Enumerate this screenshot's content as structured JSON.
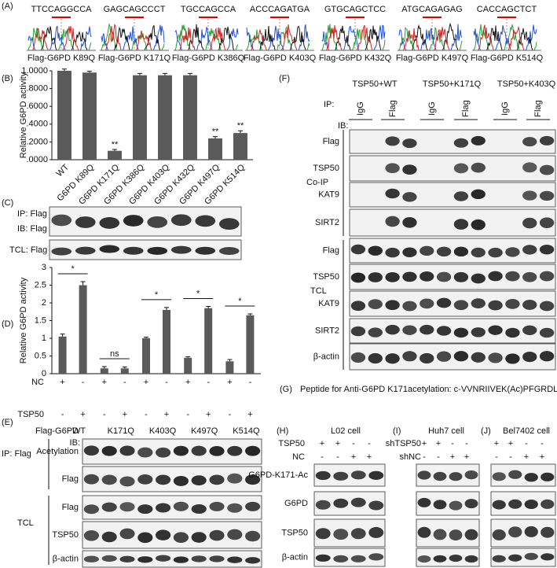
{
  "panels": {
    "A": {
      "label": "(A)",
      "sequences": [
        "TTCCAGGCCA",
        "GAGCAGCCCT",
        "TGCCAGCCA",
        "ACCCAGATGA",
        "GTGCAGCTCC",
        "ATGCAGAGAG",
        "CACCAGCTCT"
      ],
      "constructs": [
        "Flag-G6PD K89Q",
        "Flag-G6PD K171Q",
        "Flag-G6PD K386Q",
        "Flag-G6PD K403Q",
        "Flag-G6PD K432Q",
        "Flag-G6PD K497Q",
        "Flag-G6PD K514Q"
      ]
    },
    "B": {
      "label": "(B)"
    },
    "C": {
      "label": "(C)",
      "rows": [
        "IP: Flag",
        "IB: Flag",
        "TCL: Flag"
      ]
    },
    "D": {
      "label": "(D)"
    },
    "E": {
      "label": "(E)",
      "construct_label": "Flag-G6PD",
      "ib": "IB:",
      "ip": "IP: Flag",
      "ip_rows": [
        "Acetylation",
        "Flag"
      ],
      "tcl": "TCL",
      "tcl_rows": [
        "Flag",
        "TSP50",
        "β-actin"
      ]
    },
    "F": {
      "label": "(F)",
      "groups": [
        "TSP50+WT",
        "TSP50+K171Q",
        "TSP50+K403Q"
      ],
      "ip": "IP:",
      "lanes": [
        "IgG",
        "Flag",
        "IgG",
        "Flag",
        "IgG",
        "Flag"
      ],
      "ib": "IB:",
      "coip": "Co-IP",
      "coip_rows": [
        "Flag",
        "TSP50",
        "KAT9",
        "SIRT2"
      ],
      "tcl": "TCL",
      "tcl_rows": [
        "Flag",
        "TSP50",
        "KAT9",
        "SIRT2",
        "β-actin"
      ]
    },
    "G": {
      "label": "(G)",
      "text": "Peptide for Anti-G6PD K171acetylation: c-VVNRIIVEK(Ac)PFGRDLQ"
    },
    "H": {
      "label": "(H)",
      "title": "L02 cell",
      "conditions": [
        {
          "name": "TSP50",
          "marks": [
            "+",
            "+",
            "-",
            "-"
          ]
        },
        {
          "name": "NC",
          "marks": [
            "-",
            "-",
            "+",
            "+"
          ]
        }
      ],
      "rows": [
        "G6PD-K171-Ac",
        "G6PD",
        "TSP50",
        "β-actin"
      ]
    },
    "I": {
      "label": "(I)",
      "title": "Huh7 cell",
      "conditions": [
        {
          "name": "shTSP50",
          "marks": [
            "+",
            "+",
            "-",
            "-"
          ]
        },
        {
          "name": "shNC",
          "marks": [
            "-",
            "-",
            "+",
            "+"
          ]
        }
      ]
    },
    "J": {
      "label": "(J)",
      "title": "Bel7402 cell",
      "conditions": [
        {
          "marks": [
            "+",
            "+",
            "-",
            "-"
          ]
        },
        {
          "marks": [
            "-",
            "-",
            "+",
            "+"
          ]
        }
      ]
    }
  },
  "chart_data": [
    {
      "type": "bar",
      "ylabel": "Relative G6PD activity",
      "categories": [
        "WT",
        "G6PD K89Q",
        "G6PD K171Q",
        "G6PD K386Q",
        "G6PD K403Q",
        "G6PD K432Q",
        "G6PD K497Q",
        "G6PD K514Q"
      ],
      "values": [
        1.0,
        0.98,
        0.1,
        0.95,
        0.95,
        0.95,
        0.24,
        0.3
      ],
      "errors": [
        0.02,
        0.015,
        0.015,
        0.02,
        0.02,
        0.02,
        0.02,
        0.025
      ],
      "significance": [
        null,
        null,
        "**",
        null,
        null,
        null,
        "**",
        "**"
      ],
      "color": "#5a5a5a",
      "ylim": [
        0,
        1.0
      ],
      "yticks": [
        {
          "value": 0,
          "label": ".0000"
        },
        {
          "value": 0.2,
          "label": ".2000"
        },
        {
          "value": 0.4,
          "label": ".4000"
        },
        {
          "value": 0.6,
          "label": ".6000"
        },
        {
          "value": 0.8,
          "label": ".8000"
        },
        {
          "value": 1.0,
          "label": "1.0000"
        }
      ]
    },
    {
      "type": "grouped-bar",
      "ylabel": "Relative G6PD activity",
      "categories": [
        "WT",
        "K171Q",
        "K403Q",
        "K497Q",
        "K514Q"
      ],
      "series": [
        {
          "name": "NC",
          "color": "#5a5a5a",
          "values": [
            1.05,
            0.15,
            1.0,
            0.45,
            0.35
          ],
          "errors": [
            0.07,
            0.05,
            0.03,
            0.03,
            0.05
          ],
          "marks": [
            "+",
            "-",
            "+",
            "-",
            "+",
            "-",
            "+",
            "-",
            "+",
            "-"
          ]
        },
        {
          "name": "TSP50",
          "color": "#5a5a5a",
          "values": [
            2.5,
            0.15,
            1.8,
            1.85,
            1.65
          ],
          "errors": [
            0.1,
            0.04,
            0.07,
            0.05,
            0.04
          ],
          "marks": [
            "-",
            "+",
            "-",
            "+",
            "-",
            "+",
            "-",
            "+",
            "-",
            "+"
          ]
        }
      ],
      "significance": [
        "*",
        "ns",
        "*",
        "*",
        "*"
      ],
      "ylim": [
        0,
        3
      ],
      "yticks": [
        0,
        0.5,
        1,
        1.5,
        2,
        2.5,
        3
      ]
    }
  ]
}
